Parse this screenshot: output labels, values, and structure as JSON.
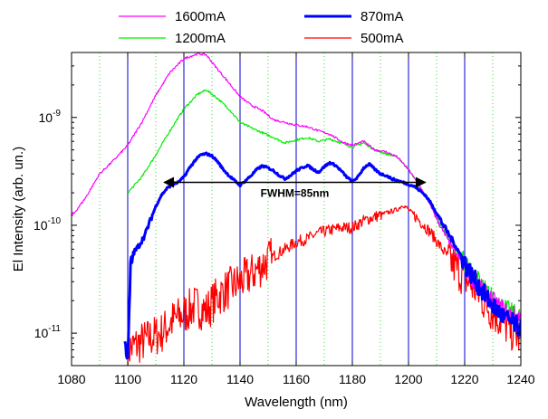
{
  "chart_data": {
    "type": "line",
    "title": "",
    "xlabel": "Wavelength (nm)",
    "ylabel": "El Intensity (arb. un.)",
    "xlim": [
      1080,
      1240
    ],
    "ylim": [
      5e-12,
      4e-09
    ],
    "yscale": "log",
    "x_ticks": [
      1080,
      1100,
      1120,
      1140,
      1160,
      1180,
      1200,
      1220,
      1240
    ],
    "x_tick_labels": [
      "1080",
      "1100",
      "1120",
      "1140",
      "1160",
      "1180",
      "1200",
      "1220",
      "1240"
    ],
    "y_ticks": [
      1e-11,
      1e-10,
      1e-09
    ],
    "y_tick_labels": [
      {
        "base": "10",
        "exp": "-11"
      },
      {
        "base": "10",
        "exp": "-10"
      },
      {
        "base": "10",
        "exp": "-9"
      }
    ],
    "grid": {
      "solid_blue_x": [
        1100,
        1120,
        1140,
        1160,
        1180,
        1200,
        1220
      ],
      "dotted_green_x": [
        1090,
        1110,
        1130,
        1150,
        1170,
        1190,
        1210,
        1230
      ],
      "solid_color": "#0000cc",
      "dotted_color": "#33dd33"
    },
    "legend_position": "top",
    "series": [
      {
        "name": "1600mA",
        "color": "#ff00ff",
        "width": 1.2,
        "x": [
          1080,
          1085,
          1090,
          1095,
          1100,
          1105,
          1110,
          1115,
          1120,
          1125,
          1128,
          1132,
          1136,
          1140,
          1144,
          1148,
          1152,
          1156,
          1160,
          1164,
          1168,
          1172,
          1176,
          1180,
          1184,
          1188,
          1192,
          1196,
          1200,
          1204,
          1208,
          1212,
          1216,
          1220,
          1224,
          1228,
          1232,
          1236,
          1240
        ],
        "y": [
          1.2e-10,
          1.8e-10,
          3e-10,
          4e-10,
          5.5e-10,
          9e-10,
          1.6e-09,
          2.6e-09,
          3.5e-09,
          3.9e-09,
          3.8e-09,
          2.8e-09,
          2.1e-09,
          1.55e-09,
          1.3e-09,
          1.15e-09,
          9.5e-10,
          9e-10,
          8.5e-10,
          8.2e-10,
          7.5e-10,
          7e-10,
          6e-10,
          5.5e-10,
          6e-10,
          5e-10,
          4.8e-10,
          4.3e-10,
          3.3e-10,
          2.3e-10,
          1.5e-10,
          9e-11,
          6e-11,
          4e-11,
          3e-11,
          2.2e-11,
          1.8e-11,
          1.5e-11,
          1.4e-11
        ]
      },
      {
        "name": "870mA",
        "color": "#0000ff",
        "width": 3,
        "x": [
          1099,
          1100,
          1101,
          1102,
          1104,
          1106,
          1108,
          1110,
          1112,
          1114,
          1116,
          1118,
          1120,
          1122,
          1124,
          1126,
          1128,
          1130,
          1132,
          1134,
          1136,
          1138,
          1140,
          1142,
          1144,
          1146,
          1148,
          1150,
          1152,
          1154,
          1156,
          1158,
          1160,
          1162,
          1164,
          1166,
          1168,
          1170,
          1172,
          1174,
          1176,
          1178,
          1180,
          1182,
          1184,
          1186,
          1188,
          1190,
          1192,
          1194,
          1196,
          1198,
          1200,
          1202,
          1204,
          1206,
          1208,
          1210,
          1212,
          1214,
          1216,
          1218,
          1220,
          1222,
          1224,
          1226,
          1228,
          1230,
          1232,
          1234,
          1236,
          1238,
          1240
        ],
        "y": [
          1e-11,
          5e-12,
          4e-11,
          5.5e-11,
          6.5e-11,
          8e-11,
          1.1e-10,
          1.5e-10,
          1.9e-10,
          2.2e-10,
          2.4e-10,
          2.5e-10,
          2.8e-10,
          3.4e-10,
          4e-10,
          4.5e-10,
          4.6e-10,
          4.4e-10,
          3.9e-10,
          3.3e-10,
          2.9e-10,
          2.6e-10,
          2.35e-10,
          2.6e-10,
          2.9e-10,
          3.3e-10,
          3.55e-10,
          3.4e-10,
          3.2e-10,
          2.9e-10,
          2.7e-10,
          2.9e-10,
          3.2e-10,
          3.4e-10,
          3.6e-10,
          3.3e-10,
          3.1e-10,
          3.5e-10,
          3.8e-10,
          3.6e-10,
          3.2e-10,
          2.8e-10,
          2.55e-10,
          2.8e-10,
          3.4e-10,
          3.7e-10,
          3.3e-10,
          3e-10,
          2.9e-10,
          2.7e-10,
          2.6e-10,
          2.5e-10,
          2.4e-10,
          2.3e-10,
          2.1e-10,
          1.9e-10,
          1.6e-10,
          1.3e-10,
          1.05e-10,
          8.5e-11,
          7e-11,
          5.6e-11,
          4.5e-11,
          3.6e-11,
          3e-11,
          2.5e-11,
          2.1e-11,
          1.8e-11,
          1.6e-11,
          1.4e-11,
          1.3e-11,
          1.2e-11,
          1.1e-11
        ]
      },
      {
        "name": "1200mA",
        "color": "#00ee00",
        "width": 1.2,
        "x": [
          1100,
          1105,
          1110,
          1115,
          1120,
          1125,
          1128,
          1132,
          1136,
          1140,
          1144,
          1148,
          1152,
          1156,
          1160,
          1164,
          1168,
          1172,
          1176,
          1180,
          1184,
          1188,
          1192,
          1196,
          1200,
          1204,
          1208,
          1212,
          1216,
          1220,
          1224,
          1228,
          1232,
          1236,
          1240
        ],
        "y": [
          2e-10,
          2.8e-10,
          4.5e-10,
          7.5e-10,
          1.2e-09,
          1.65e-09,
          1.8e-09,
          1.5e-09,
          1.2e-09,
          9e-10,
          8e-10,
          7.2e-10,
          6.5e-10,
          5.8e-10,
          6.2e-10,
          6.5e-10,
          6e-10,
          6.3e-10,
          5.8e-10,
          5.3e-10,
          5.8e-10,
          5e-10,
          4.6e-10,
          4.3e-10,
          3.3e-10,
          2.3e-10,
          1.5e-10,
          9.5e-11,
          6.5e-11,
          4.5e-11,
          3.3e-11,
          2.4e-11,
          1.9e-11,
          1.6e-11,
          1.4e-11
        ]
      },
      {
        "name": "500mA",
        "color": "#ff0000",
        "width": 1.2,
        "x": [
          1100,
          1104,
          1108,
          1112,
          1116,
          1120,
          1124,
          1128,
          1132,
          1136,
          1140,
          1144,
          1148,
          1152,
          1156,
          1160,
          1164,
          1168,
          1172,
          1176,
          1180,
          1184,
          1188,
          1192,
          1196,
          1198,
          1200,
          1204,
          1208,
          1212,
          1216,
          1220,
          1224,
          1228,
          1232,
          1236,
          1240
        ],
        "y": [
          7e-12,
          8e-12,
          9e-12,
          1e-11,
          1.3e-11,
          1.5e-11,
          1.8e-11,
          1.6e-11,
          2.2e-11,
          2.6e-11,
          3e-11,
          3.5e-11,
          4.3e-11,
          5.2e-11,
          6e-11,
          7e-11,
          7.5e-11,
          8.5e-11,
          9e-11,
          9.5e-11,
          9.5e-11,
          1.1e-10,
          1.2e-10,
          1.3e-10,
          1.4e-10,
          1.55e-10,
          1.4e-10,
          1.1e-10,
          8.5e-11,
          6e-11,
          4.3e-11,
          3.3e-11,
          2.5e-11,
          1.8e-11,
          1.4e-11,
          1.1e-11,
          9e-12
        ]
      }
    ],
    "annotations": [
      {
        "text": "FWHM=85nm",
        "type": "double-arrow",
        "x_start": 1113,
        "x_end": 1206,
        "y": 2.5e-10
      }
    ]
  }
}
